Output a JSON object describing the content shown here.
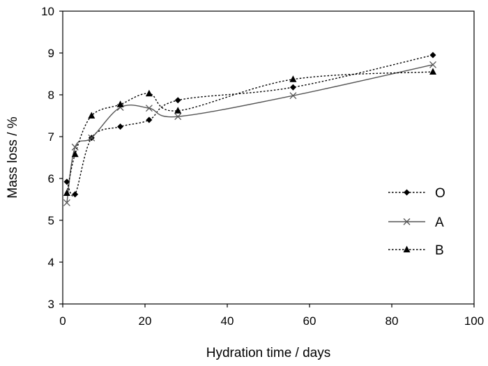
{
  "chart_data": {
    "type": "line",
    "title": "",
    "xlabel": "Hydration time / days",
    "ylabel": "Mass loss / %",
    "xlim": [
      0,
      100
    ],
    "ylim": [
      3,
      10
    ],
    "x_ticks": [
      "0",
      "20",
      "40",
      "60",
      "80",
      "100"
    ],
    "y_ticks": [
      "3",
      "4",
      "5",
      "6",
      "7",
      "8",
      "9",
      "10"
    ],
    "grid": false,
    "legend_position": "right",
    "series": [
      {
        "name": "O",
        "marker": "diamond",
        "line_style": "dotted",
        "color": "#000000",
        "x": [
          1,
          3,
          7,
          14,
          21,
          28,
          56,
          90
        ],
        "y": [
          5.92,
          5.62,
          6.97,
          7.24,
          7.4,
          7.87,
          8.18,
          8.95
        ]
      },
      {
        "name": "A",
        "marker": "x",
        "line_style": "solid",
        "color": "#555555",
        "x": [
          1,
          3,
          7,
          14,
          21,
          28,
          56,
          90
        ],
        "y": [
          5.42,
          6.75,
          6.97,
          7.7,
          7.68,
          7.48,
          7.98,
          8.72
        ]
      },
      {
        "name": "B",
        "marker": "triangle",
        "line_style": "dotted",
        "color": "#000000",
        "x": [
          1,
          3,
          7,
          14,
          21,
          28,
          56,
          90
        ],
        "y": [
          5.65,
          6.58,
          7.5,
          7.77,
          8.03,
          7.62,
          8.37,
          8.55
        ]
      }
    ]
  }
}
